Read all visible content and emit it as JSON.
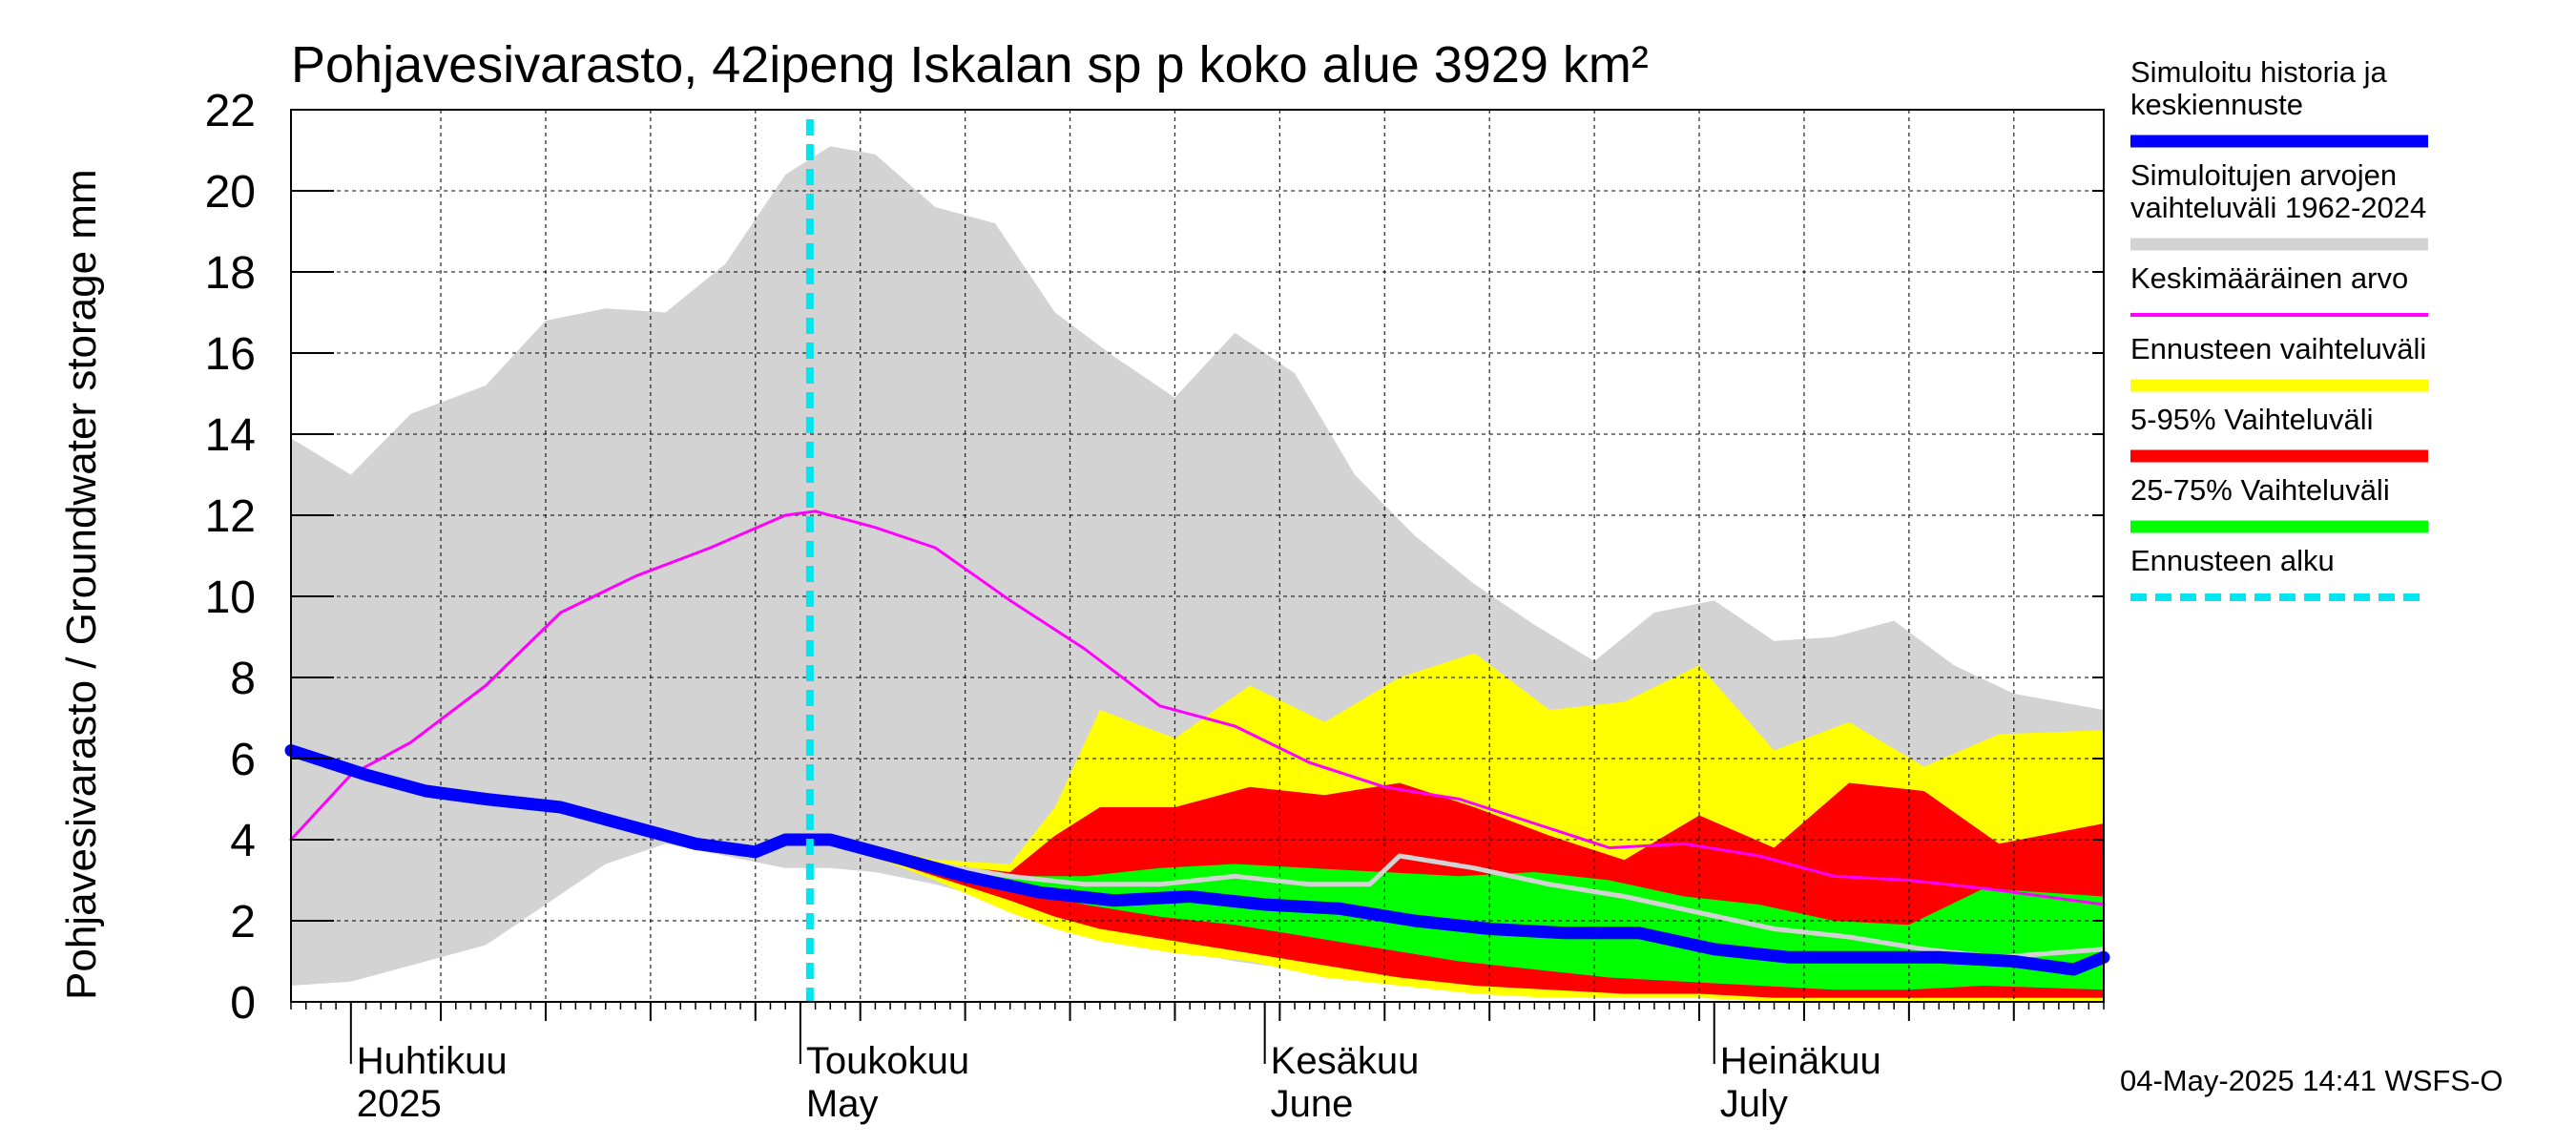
{
  "chart_data": {
    "type": "area",
    "title": "Pohjavesivarasto, 42ipeng Iskalan sp p koko alue 3929 km²",
    "ylabel": "Pohjavesivarasto / Groundwater storage   mm",
    "ylim": [
      0,
      22
    ],
    "yticks": [
      "0",
      "2",
      "4",
      "6",
      "8",
      "10",
      "12",
      "14",
      "16",
      "18",
      "20",
      "22"
    ],
    "xlim": [
      "2025-03-28",
      "2025-07-27"
    ],
    "months": [
      {
        "top": "Huhtikuu",
        "bottom": "2025",
        "date": "2025-04-01"
      },
      {
        "top": "Toukokuu",
        "bottom": "May",
        "date": "2025-05-01"
      },
      {
        "top": "Kesäkuu",
        "bottom": "June",
        "date": "2025-06-01"
      },
      {
        "top": "Heinäkuu",
        "bottom": "July",
        "date": "2025-07-01"
      }
    ],
    "forecast_start": "2025-05-01",
    "grid": true,
    "legend_position": "right",
    "series": [
      {
        "name": "Simuloitujen arvojen vaihteluväli 1962-2024",
        "kind": "band",
        "color": "#d3d3d3",
        "x": [
          "2025-03-28",
          "2025-04-01",
          "2025-04-05",
          "2025-04-10",
          "2025-04-14",
          "2025-04-18",
          "2025-04-22",
          "2025-04-26",
          "2025-04-30",
          "2025-05-03",
          "2025-05-06",
          "2025-05-10",
          "2025-05-14",
          "2025-05-18",
          "2025-05-22",
          "2025-05-26",
          "2025-05-30",
          "2025-06-03",
          "2025-06-07",
          "2025-06-11",
          "2025-06-15",
          "2025-06-19",
          "2025-06-23",
          "2025-06-27",
          "2025-07-01",
          "2025-07-05",
          "2025-07-09",
          "2025-07-13",
          "2025-07-17",
          "2025-07-21",
          "2025-07-27"
        ],
        "upper": [
          13.9,
          13.0,
          14.5,
          15.2,
          16.8,
          17.1,
          17.0,
          18.2,
          20.4,
          21.1,
          20.9,
          19.6,
          19.2,
          17.0,
          15.9,
          14.9,
          16.5,
          15.5,
          13.0,
          11.5,
          10.3,
          9.3,
          8.4,
          9.6,
          9.9,
          8.9,
          9.0,
          9.4,
          8.3,
          7.6,
          7.2
        ],
        "lower": [
          0.4,
          0.5,
          0.9,
          1.4,
          2.4,
          3.4,
          3.9,
          3.6,
          3.3,
          3.3,
          3.2,
          2.9,
          2.5,
          2.1,
          1.7,
          1.3,
          1.0,
          0.8,
          0.6,
          0.5,
          0.4,
          0.3,
          0.3,
          0.2,
          0.2,
          0.1,
          0.1,
          0.1,
          0.1,
          0.1,
          0.1
        ]
      },
      {
        "name": "Ennusteen vaihteluväli",
        "kind": "band",
        "color": "#ffff00",
        "x": [
          "2025-05-01",
          "2025-05-05",
          "2025-05-10",
          "2025-05-15",
          "2025-05-18",
          "2025-05-21",
          "2025-05-26",
          "2025-05-31",
          "2025-06-05",
          "2025-06-10",
          "2025-06-15",
          "2025-06-20",
          "2025-06-25",
          "2025-06-30",
          "2025-07-05",
          "2025-07-10",
          "2025-07-15",
          "2025-07-20",
          "2025-07-27"
        ],
        "upper": [
          4.0,
          3.9,
          3.5,
          3.4,
          4.8,
          7.2,
          6.5,
          7.8,
          6.9,
          8.0,
          8.6,
          7.2,
          7.4,
          8.3,
          6.2,
          6.9,
          5.8,
          6.6,
          6.7
        ],
        "lower": [
          4.0,
          3.7,
          3.0,
          2.2,
          1.8,
          1.5,
          1.2,
          1.0,
          0.6,
          0.4,
          0.2,
          0.1,
          0.1,
          0.1,
          0.0,
          0.0,
          0.0,
          0.0,
          0.0
        ]
      },
      {
        "name": "5-95% Vaihteluväli",
        "kind": "band",
        "color": "#ff0000",
        "x": [
          "2025-05-01",
          "2025-05-05",
          "2025-05-10",
          "2025-05-15",
          "2025-05-18",
          "2025-05-21",
          "2025-05-26",
          "2025-05-31",
          "2025-06-05",
          "2025-06-10",
          "2025-06-15",
          "2025-06-20",
          "2025-06-25",
          "2025-06-30",
          "2025-07-05",
          "2025-07-10",
          "2025-07-15",
          "2025-07-20",
          "2025-07-27"
        ],
        "upper": [
          4.0,
          3.8,
          3.4,
          3.2,
          4.1,
          4.8,
          4.8,
          5.3,
          5.1,
          5.4,
          4.8,
          4.1,
          3.5,
          4.6,
          3.8,
          5.4,
          5.2,
          3.9,
          4.4
        ],
        "lower": [
          4.0,
          3.7,
          3.1,
          2.5,
          2.1,
          1.8,
          1.5,
          1.2,
          0.9,
          0.6,
          0.4,
          0.3,
          0.2,
          0.2,
          0.1,
          0.1,
          0.1,
          0.1,
          0.1
        ]
      },
      {
        "name": "25-75% Vaihteluväli",
        "kind": "band",
        "color": "#00ff00",
        "x": [
          "2025-05-01",
          "2025-05-05",
          "2025-05-10",
          "2025-05-15",
          "2025-05-20",
          "2025-05-25",
          "2025-05-30",
          "2025-06-04",
          "2025-06-09",
          "2025-06-14",
          "2025-06-19",
          "2025-06-24",
          "2025-06-29",
          "2025-07-04",
          "2025-07-09",
          "2025-07-14",
          "2025-07-19",
          "2025-07-27"
        ],
        "upper": [
          4.0,
          3.8,
          3.4,
          3.1,
          3.1,
          3.3,
          3.4,
          3.3,
          3.2,
          3.1,
          3.2,
          3.0,
          2.6,
          2.4,
          2.0,
          1.9,
          2.8,
          2.6
        ],
        "lower": [
          4.0,
          3.7,
          3.2,
          2.8,
          2.4,
          2.1,
          1.9,
          1.6,
          1.3,
          1.0,
          0.8,
          0.6,
          0.5,
          0.4,
          0.3,
          0.3,
          0.4,
          0.3
        ]
      },
      {
        "name": "Keskimääräinen arvo",
        "kind": "line",
        "color": "#ff00ff",
        "x": [
          "2025-03-28",
          "2025-04-01",
          "2025-04-05",
          "2025-04-10",
          "2025-04-15",
          "2025-04-20",
          "2025-04-25",
          "2025-04-30",
          "2025-05-02",
          "2025-05-06",
          "2025-05-10",
          "2025-05-15",
          "2025-05-20",
          "2025-05-25",
          "2025-05-30",
          "2025-06-04",
          "2025-06-09",
          "2025-06-14",
          "2025-06-19",
          "2025-06-24",
          "2025-06-29",
          "2025-07-04",
          "2025-07-09",
          "2025-07-14",
          "2025-07-19",
          "2025-07-27"
        ],
        "y": [
          4.0,
          5.6,
          6.4,
          7.8,
          9.6,
          10.5,
          11.2,
          12.0,
          12.1,
          11.7,
          11.2,
          9.9,
          8.7,
          7.3,
          6.8,
          5.9,
          5.3,
          5.0,
          4.4,
          3.8,
          3.9,
          3.6,
          3.1,
          3.0,
          2.8,
          2.4
        ]
      },
      {
        "name": "",
        "kind": "line",
        "color": "#d3d3d3",
        "x": [
          "2025-05-10",
          "2025-05-15",
          "2025-05-20",
          "2025-05-25",
          "2025-05-30",
          "2025-06-04",
          "2025-06-08",
          "2025-06-10",
          "2025-06-15",
          "2025-06-20",
          "2025-06-25",
          "2025-06-30",
          "2025-07-05",
          "2025-07-10",
          "2025-07-15",
          "2025-07-20",
          "2025-07-27"
        ],
        "y": [
          3.4,
          3.1,
          2.9,
          2.9,
          3.1,
          2.9,
          2.9,
          3.6,
          3.3,
          2.9,
          2.6,
          2.2,
          1.8,
          1.6,
          1.3,
          1.1,
          1.3
        ]
      },
      {
        "name": "Simuloitu historia ja keskiennuste",
        "kind": "line",
        "color": "#0000ff",
        "x": [
          "2025-03-28",
          "2025-04-02",
          "2025-04-06",
          "2025-04-10",
          "2025-04-15",
          "2025-04-20",
          "2025-04-24",
          "2025-04-28",
          "2025-04-30",
          "2025-05-03",
          "2025-05-07",
          "2025-05-12",
          "2025-05-17",
          "2025-05-22",
          "2025-05-27",
          "2025-06-01",
          "2025-06-06",
          "2025-06-11",
          "2025-06-16",
          "2025-06-21",
          "2025-06-26",
          "2025-07-01",
          "2025-07-06",
          "2025-07-11",
          "2025-07-16",
          "2025-07-21",
          "2025-07-25",
          "2025-07-27"
        ],
        "y": [
          6.2,
          5.6,
          5.2,
          5.0,
          4.8,
          4.3,
          3.9,
          3.7,
          4.0,
          4.0,
          3.6,
          3.1,
          2.7,
          2.5,
          2.6,
          2.4,
          2.3,
          2.0,
          1.8,
          1.7,
          1.7,
          1.3,
          1.1,
          1.1,
          1.1,
          1.0,
          0.8,
          1.1
        ]
      },
      {
        "name": "Ennusteen alku",
        "kind": "marker",
        "color": "#00e5ee"
      }
    ]
  },
  "legend": [
    {
      "lines": [
        "Simuloitu historia ja",
        "keskiennuste"
      ],
      "color": "#0000ff",
      "style": "thick"
    },
    {
      "lines": [
        "Simuloitujen arvojen",
        "vaihteluväli 1962-2024"
      ],
      "color": "#d3d3d3",
      "style": "thick"
    },
    {
      "lines": [
        "Keskimääräinen arvo"
      ],
      "color": "#ff00ff",
      "style": "thin"
    },
    {
      "lines": [
        "Ennusteen vaihteluväli"
      ],
      "color": "#ffff00",
      "style": "thick"
    },
    {
      "lines": [
        "5-95% Vaihteluväli"
      ],
      "color": "#ff0000",
      "style": "thick"
    },
    {
      "lines": [
        "25-75% Vaihteluväli"
      ],
      "color": "#00ff00",
      "style": "thick"
    },
    {
      "lines": [
        "Ennusteen alku"
      ],
      "color": "#00e5ee",
      "style": "dashed"
    }
  ],
  "timestamp": "04-May-2025 14:41 WSFS-O"
}
